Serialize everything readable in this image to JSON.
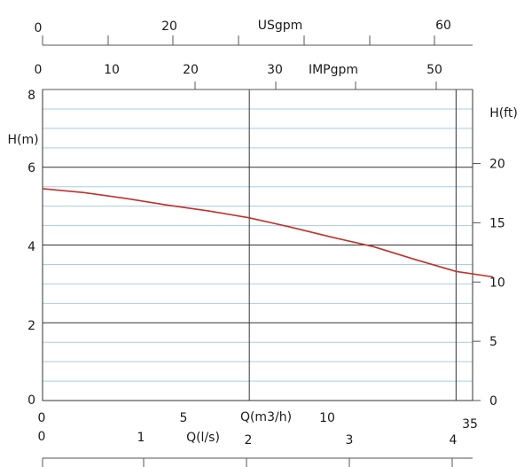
{
  "chart_data": {
    "type": "line",
    "title": "",
    "colors": {
      "curve": "#c0312b",
      "minor_grid": "#a9cde3",
      "major_grid": "#333333"
    },
    "primary_x": {
      "label": "Q(m3/h)",
      "range": [
        0,
        10.4
      ],
      "ticks": [
        "0",
        "5",
        "10"
      ],
      "extra_label": "35"
    },
    "primary_y": {
      "label": "H(m)",
      "range": [
        0,
        8
      ],
      "ticks": [
        "0",
        "2",
        "4",
        "6",
        "8"
      ],
      "minor_step": 0.5,
      "major_step": 2
    },
    "secondary_y": {
      "label": "H(ft)",
      "ticks": [
        "0",
        "5",
        "10",
        "15",
        "20"
      ]
    },
    "top_axis_usgpm": {
      "label": "USgpm",
      "ticks": [
        "0",
        "20",
        "60"
      ]
    },
    "top_axis_impgpm": {
      "label": "IMPgpm",
      "ticks": [
        "0",
        "10",
        "20",
        "30",
        "50"
      ]
    },
    "bottom_axis_ls": {
      "label": "Q(l/s)",
      "ticks": [
        "0",
        "1",
        "2",
        "3",
        "4"
      ]
    },
    "series": [
      {
        "values": [
          {
            "x": 0,
            "y": 5.45
          },
          {
            "x": 1,
            "y": 5.35
          },
          {
            "x": 2,
            "y": 5.2
          },
          {
            "x": 3,
            "y": 5.03
          },
          {
            "x": 4,
            "y": 4.88
          },
          {
            "x": 5,
            "y": 4.7
          },
          {
            "x": 6,
            "y": 4.46
          },
          {
            "x": 7,
            "y": 4.2
          },
          {
            "x": 8,
            "y": 3.96
          },
          {
            "x": 9,
            "y": 3.63
          },
          {
            "x": 10,
            "y": 3.32
          },
          {
            "x": 10.9,
            "y": 3.18
          }
        ]
      }
    ]
  }
}
